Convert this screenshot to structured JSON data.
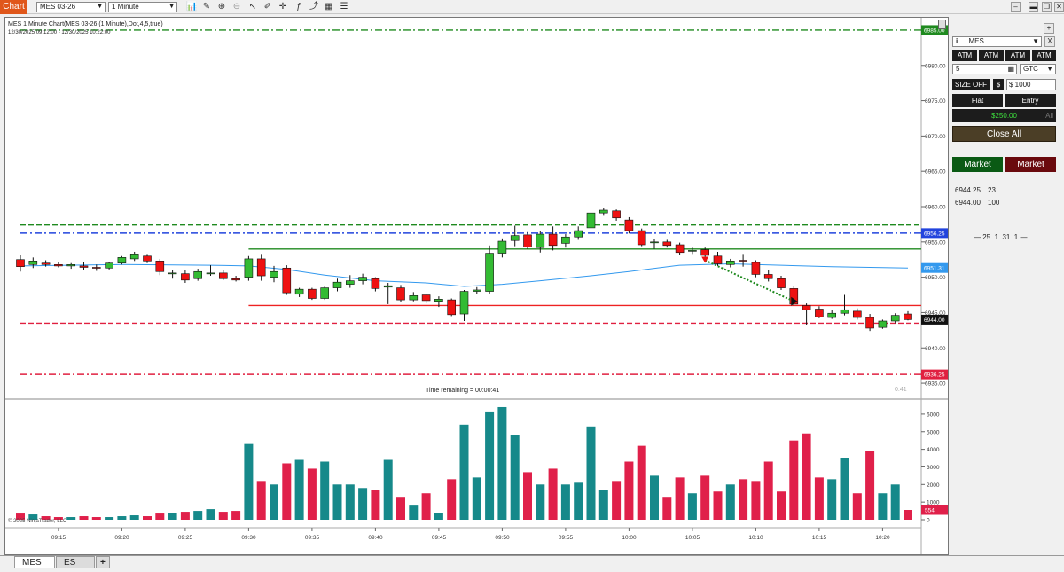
{
  "toolbar": {
    "chart_tab": "Chart",
    "instrument": "MES 03-26",
    "interval": "1 Minute"
  },
  "chart": {
    "header_title": "MES 1 Minute Chart(MES 03-26 (1 Minute),Dot,4,5,true)",
    "header_date_range": "12/30/2025 09:12:00 - 12/30/2025 10:22:00",
    "time_remaining": "Time remaining = 00:00:41",
    "countdown": "0:41",
    "copyright": "© 2025 NinjaTrader, LLC",
    "price_ticks": [
      "6980.00",
      "6975.00",
      "6970.00",
      "6965.00",
      "6960.00",
      "6955.00",
      "6950.00",
      "6945.00",
      "6940.00",
      "6935.00"
    ],
    "price_flags": [
      {
        "label": "6985.00",
        "price": 6985.0,
        "color": "#1f8a1f"
      },
      {
        "label": "6956.25",
        "price": 6956.25,
        "color": "#2244dd"
      },
      {
        "label": "6951.31",
        "price": 6951.31,
        "color": "#3399ee"
      },
      {
        "label": "6944.00",
        "price": 6944.0,
        "color": "#111111"
      },
      {
        "label": "6936.25",
        "price": 6936.25,
        "color": "#e02040"
      }
    ],
    "volume_ticks": [
      "6000",
      "5000",
      "4000",
      "3000",
      "2000",
      "1000",
      "0"
    ],
    "volume_flag": "554",
    "time_ticks": [
      "09:15",
      "09:20",
      "09:25",
      "09:30",
      "09:35",
      "09:40",
      "09:45",
      "09:50",
      "09:55",
      "10:00",
      "10:05",
      "10:10",
      "10:15",
      "10:20"
    ]
  },
  "chart_data": {
    "type": "candlestick",
    "y_range": [
      6933.0,
      6986.5
    ],
    "volume_range": [
      0,
      6600
    ],
    "bars": [
      {
        "t": "09:12",
        "o": 6952.5,
        "h": 6953.2,
        "l": 6950.8,
        "c": 6951.5,
        "v": 350
      },
      {
        "t": "09:13",
        "o": 6951.8,
        "h": 6952.8,
        "l": 6951.3,
        "c": 6952.3,
        "v": 300
      },
      {
        "t": "09:14",
        "o": 6952.0,
        "h": 6952.4,
        "l": 6951.5,
        "c": 6951.8,
        "v": 200
      },
      {
        "t": "09:15",
        "o": 6951.8,
        "h": 6952.1,
        "l": 6951.4,
        "c": 6951.6,
        "v": 150
      },
      {
        "t": "09:16",
        "o": 6951.6,
        "h": 6952.0,
        "l": 6951.2,
        "c": 6951.8,
        "v": 150
      },
      {
        "t": "09:17",
        "o": 6951.6,
        "h": 6952.2,
        "l": 6951.0,
        "c": 6951.4,
        "v": 200
      },
      {
        "t": "09:18",
        "o": 6951.4,
        "h": 6951.8,
        "l": 6950.9,
        "c": 6951.3,
        "v": 150
      },
      {
        "t": "09:19",
        "o": 6951.3,
        "h": 6952.2,
        "l": 6951.1,
        "c": 6952.0,
        "v": 150
      },
      {
        "t": "09:20",
        "o": 6952.0,
        "h": 6953.0,
        "l": 6951.8,
        "c": 6952.8,
        "v": 200
      },
      {
        "t": "09:21",
        "o": 6952.6,
        "h": 6953.6,
        "l": 6952.3,
        "c": 6953.3,
        "v": 250
      },
      {
        "t": "09:22",
        "o": 6953.0,
        "h": 6953.3,
        "l": 6952.0,
        "c": 6952.3,
        "v": 200
      },
      {
        "t": "09:23",
        "o": 6952.3,
        "h": 6952.6,
        "l": 6950.3,
        "c": 6950.8,
        "v": 350
      },
      {
        "t": "09:24",
        "o": 6950.6,
        "h": 6951.0,
        "l": 6949.8,
        "c": 6950.6,
        "v": 400
      },
      {
        "t": "09:25",
        "o": 6950.5,
        "h": 6951.0,
        "l": 6949.2,
        "c": 6949.6,
        "v": 450
      },
      {
        "t": "09:26",
        "o": 6949.8,
        "h": 6951.2,
        "l": 6949.5,
        "c": 6950.8,
        "v": 500
      },
      {
        "t": "09:27",
        "o": 6950.6,
        "h": 6951.7,
        "l": 6950.2,
        "c": 6950.6,
        "v": 600
      },
      {
        "t": "09:28",
        "o": 6950.6,
        "h": 6951.0,
        "l": 6949.6,
        "c": 6949.8,
        "v": 450
      },
      {
        "t": "09:29",
        "o": 6949.8,
        "h": 6950.2,
        "l": 6949.4,
        "c": 6949.6,
        "v": 500
      },
      {
        "t": "09:30",
        "o": 6950.0,
        "h": 6953.0,
        "l": 6949.5,
        "c": 6952.6,
        "v": 4300
      },
      {
        "t": "09:31",
        "o": 6952.6,
        "h": 6953.3,
        "l": 6949.5,
        "c": 6950.2,
        "v": 2200
      },
      {
        "t": "09:32",
        "o": 6950.0,
        "h": 6951.6,
        "l": 6949.3,
        "c": 6950.8,
        "v": 2000
      },
      {
        "t": "09:33",
        "o": 6951.3,
        "h": 6951.7,
        "l": 6947.5,
        "c": 6947.8,
        "v": 3200
      },
      {
        "t": "09:34",
        "o": 6947.6,
        "h": 6948.5,
        "l": 6947.2,
        "c": 6948.3,
        "v": 3400
      },
      {
        "t": "09:35",
        "o": 6948.3,
        "h": 6948.5,
        "l": 6946.8,
        "c": 6947.0,
        "v": 2900
      },
      {
        "t": "09:36",
        "o": 6947.0,
        "h": 6948.8,
        "l": 6946.8,
        "c": 6948.5,
        "v": 3300
      },
      {
        "t": "09:37",
        "o": 6948.5,
        "h": 6949.8,
        "l": 6948.0,
        "c": 6949.3,
        "v": 2000
      },
      {
        "t": "09:38",
        "o": 6949.0,
        "h": 6950.3,
        "l": 6948.5,
        "c": 6949.5,
        "v": 2000
      },
      {
        "t": "09:39",
        "o": 6949.5,
        "h": 6950.5,
        "l": 6949.0,
        "c": 6950.0,
        "v": 1800
      },
      {
        "t": "09:40",
        "o": 6949.8,
        "h": 6950.0,
        "l": 6948.0,
        "c": 6948.4,
        "v": 1700
      },
      {
        "t": "09:41",
        "o": 6948.6,
        "h": 6949.2,
        "l": 6946.2,
        "c": 6948.8,
        "v": 3400
      },
      {
        "t": "09:42",
        "o": 6948.5,
        "h": 6948.9,
        "l": 6946.5,
        "c": 6946.8,
        "v": 1300
      },
      {
        "t": "09:43",
        "o": 6946.8,
        "h": 6947.9,
        "l": 6946.6,
        "c": 6947.4,
        "v": 800
      },
      {
        "t": "09:44",
        "o": 6947.5,
        "h": 6947.7,
        "l": 6946.3,
        "c": 6946.7,
        "v": 1500
      },
      {
        "t": "09:45",
        "o": 6946.6,
        "h": 6947.3,
        "l": 6945.8,
        "c": 6946.9,
        "v": 400
      },
      {
        "t": "09:46",
        "o": 6946.8,
        "h": 6947.0,
        "l": 6944.5,
        "c": 6944.7,
        "v": 2300
      },
      {
        "t": "09:47",
        "o": 6944.8,
        "h": 6948.2,
        "l": 6943.8,
        "c": 6948.0,
        "v": 5400
      },
      {
        "t": "09:48",
        "o": 6948.0,
        "h": 6948.6,
        "l": 6947.6,
        "c": 6948.2,
        "v": 2400
      },
      {
        "t": "09:49",
        "o": 6948.0,
        "h": 6954.5,
        "l": 6947.7,
        "c": 6953.4,
        "v": 6100
      },
      {
        "t": "09:50",
        "o": 6953.4,
        "h": 6955.5,
        "l": 6952.8,
        "c": 6955.1,
        "v": 6400
      },
      {
        "t": "09:51",
        "o": 6955.2,
        "h": 6957.3,
        "l": 6954.4,
        "c": 6955.9,
        "v": 4800
      },
      {
        "t": "09:52",
        "o": 6956.0,
        "h": 6956.4,
        "l": 6954.0,
        "c": 6954.3,
        "v": 2700
      },
      {
        "t": "09:53",
        "o": 6954.2,
        "h": 6956.6,
        "l": 6953.5,
        "c": 6956.1,
        "v": 2000
      },
      {
        "t": "09:54",
        "o": 6956.1,
        "h": 6957.2,
        "l": 6953.8,
        "c": 6954.5,
        "v": 2900
      },
      {
        "t": "09:55",
        "o": 6954.8,
        "h": 6956.1,
        "l": 6954.2,
        "c": 6955.7,
        "v": 2000
      },
      {
        "t": "09:56",
        "o": 6955.7,
        "h": 6957.2,
        "l": 6955.3,
        "c": 6956.6,
        "v": 2100
      },
      {
        "t": "09:57",
        "o": 6957.0,
        "h": 6960.8,
        "l": 6956.4,
        "c": 6959.1,
        "v": 5300
      },
      {
        "t": "09:58",
        "o": 6959.1,
        "h": 6959.8,
        "l": 6958.7,
        "c": 6959.5,
        "v": 1700
      },
      {
        "t": "09:59",
        "o": 6959.4,
        "h": 6959.6,
        "l": 6958.0,
        "c": 6958.4,
        "v": 2200
      },
      {
        "t": "10:00",
        "o": 6958.1,
        "h": 6958.5,
        "l": 6956.2,
        "c": 6956.6,
        "v": 3300
      },
      {
        "t": "10:01",
        "o": 6956.6,
        "h": 6956.9,
        "l": 6954.4,
        "c": 6954.6,
        "v": 4200
      },
      {
        "t": "10:02",
        "o": 6955.0,
        "h": 6955.4,
        "l": 6954.0,
        "c": 6955.0,
        "v": 2500
      },
      {
        "t": "10:03",
        "o": 6955.0,
        "h": 6955.3,
        "l": 6954.2,
        "c": 6954.5,
        "v": 1300
      },
      {
        "t": "10:04",
        "o": 6954.6,
        "h": 6954.9,
        "l": 6953.2,
        "c": 6953.5,
        "v": 2400
      },
      {
        "t": "10:05",
        "o": 6953.8,
        "h": 6954.2,
        "l": 6953.3,
        "c": 6953.8,
        "v": 1500
      },
      {
        "t": "10:06",
        "o": 6953.9,
        "h": 6954.2,
        "l": 6952.6,
        "c": 6953.1,
        "v": 2500
      },
      {
        "t": "10:07",
        "o": 6953.0,
        "h": 6953.6,
        "l": 6951.6,
        "c": 6951.9,
        "v": 1600
      },
      {
        "t": "10:08",
        "o": 6951.8,
        "h": 6952.6,
        "l": 6951.4,
        "c": 6952.3,
        "v": 2000
      },
      {
        "t": "10:09",
        "o": 6952.4,
        "h": 6953.3,
        "l": 6951.5,
        "c": 6952.3,
        "v": 2300
      },
      {
        "t": "10:10",
        "o": 6952.1,
        "h": 6952.4,
        "l": 6950.0,
        "c": 6950.4,
        "v": 2200
      },
      {
        "t": "10:11",
        "o": 6950.4,
        "h": 6951.0,
        "l": 6949.4,
        "c": 6949.8,
        "v": 3300
      },
      {
        "t": "10:12",
        "o": 6949.8,
        "h": 6950.2,
        "l": 6948.2,
        "c": 6948.5,
        "v": 1600
      },
      {
        "t": "10:13",
        "o": 6948.4,
        "h": 6948.8,
        "l": 6946.0,
        "c": 6946.2,
        "v": 4500
      },
      {
        "t": "10:14",
        "o": 6946.0,
        "h": 6946.3,
        "l": 6943.2,
        "c": 6945.4,
        "v": 4900
      },
      {
        "t": "10:15",
        "o": 6945.5,
        "h": 6945.9,
        "l": 6944.2,
        "c": 6944.4,
        "v": 2400
      },
      {
        "t": "10:16",
        "o": 6944.3,
        "h": 6945.4,
        "l": 6944.1,
        "c": 6944.9,
        "v": 2300
      },
      {
        "t": "10:17",
        "o": 6944.9,
        "h": 6947.5,
        "l": 6944.6,
        "c": 6945.4,
        "v": 3500
      },
      {
        "t": "10:18",
        "o": 6945.2,
        "h": 6945.6,
        "l": 6944.0,
        "c": 6944.3,
        "v": 1500
      },
      {
        "t": "10:19",
        "o": 6944.3,
        "h": 6944.8,
        "l": 6942.4,
        "c": 6942.8,
        "v": 3900
      },
      {
        "t": "10:20",
        "o": 6942.9,
        "h": 6944.0,
        "l": 6942.7,
        "c": 6943.8,
        "v": 1500
      },
      {
        "t": "10:21",
        "o": 6943.8,
        "h": 6944.9,
        "l": 6943.5,
        "c": 6944.6,
        "v": 2000
      },
      {
        "t": "10:22",
        "o": 6944.8,
        "h": 6945.2,
        "l": 6943.9,
        "c": 6944.0,
        "v": 554
      }
    ],
    "sma_line": [
      {
        "t": "09:12",
        "y": 6951.6
      },
      {
        "t": "09:20",
        "y": 6951.8
      },
      {
        "t": "09:27",
        "y": 6951.7
      },
      {
        "t": "09:30",
        "y": 6951.6
      },
      {
        "t": "09:33",
        "y": 6951.1
      },
      {
        "t": "09:36",
        "y": 6950.3
      },
      {
        "t": "09:40",
        "y": 6949.5
      },
      {
        "t": "09:44",
        "y": 6949.2
      },
      {
        "t": "09:47",
        "y": 6948.7
      },
      {
        "t": "09:50",
        "y": 6949.0
      },
      {
        "t": "09:53",
        "y": 6949.5
      },
      {
        "t": "09:57",
        "y": 6950.2
      },
      {
        "t": "10:00",
        "y": 6950.8
      },
      {
        "t": "10:04",
        "y": 6951.7
      },
      {
        "t": "10:08",
        "y": 6951.9
      },
      {
        "t": "10:12",
        "y": 6951.7
      },
      {
        "t": "10:16",
        "y": 6951.5
      },
      {
        "t": "10:22",
        "y": 6951.3
      }
    ],
    "horizontal_lines": [
      {
        "price": 6985.0,
        "color": "#1f8a1f",
        "dash": "8 3 2 3",
        "from": "09:12"
      },
      {
        "price": 6957.4,
        "color": "#1f8a1f",
        "dash": "6 3",
        "from": "09:12"
      },
      {
        "price": 6956.25,
        "color": "#2244dd",
        "dash": "8 3 2 3",
        "from": "09:12"
      },
      {
        "price": 6954.0,
        "color": "#1f8a1f",
        "dash": "",
        "from": "09:30"
      },
      {
        "price": 6946.0,
        "color": "#ee2222",
        "dash": "",
        "from": "09:30"
      },
      {
        "price": 6943.5,
        "color": "#e02040",
        "dash": "6 3",
        "from": "09:12"
      },
      {
        "price": 6936.25,
        "color": "#e02040",
        "dash": "8 3 2 3",
        "from": "09:12"
      }
    ],
    "trade_line": {
      "from_t": "10:06",
      "from_p": 6952.4,
      "to_t": "10:13",
      "to_p": 6946.6,
      "color": "#1f8a1f"
    }
  },
  "panel": {
    "instrument": "MES",
    "close_icon": "X",
    "atm_buttons": [
      "ATM",
      "ATM",
      "ATM",
      "ATM"
    ],
    "quantity": "5",
    "tif": "GTC",
    "size_off": "SIZE OFF",
    "dollar_sign": "$",
    "amount": "$ 1000",
    "flat": "Flat",
    "entry": "Entry",
    "pnl": "$250.00",
    "pnl_all": "All",
    "close_all": "Close All",
    "market_buy": "Market",
    "market_sell": "Market",
    "positions": [
      {
        "price": "6944.25",
        "qty": "23"
      },
      {
        "price": "6944.00",
        "qty": "100"
      }
    ],
    "version": "— 25. 1. 31. 1 —"
  },
  "tabs": [
    "MES",
    "ES",
    "+"
  ]
}
